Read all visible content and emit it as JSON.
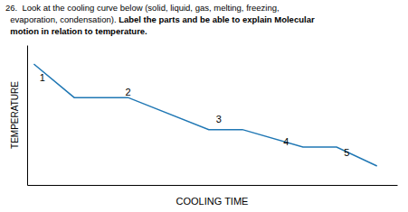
{
  "chart_data": {
    "type": "line",
    "title": [
      "26.  Look at the cooling curve below (solid, liquid, gas, melting, freezing,",
      "  evaporation, condensation). ",
      "Label the parts and be able to explain Molecular",
      "  motion in relation to temperature."
    ],
    "xlabel": "COOLING TIME",
    "ylabel": "TEMPERATURE",
    "x": [
      0.0,
      1.2,
      2.8,
      5.2,
      6.2,
      8.0,
      9.0,
      10.2
    ],
    "values": [
      9.5,
      7.2,
      7.2,
      5.0,
      5.0,
      3.8,
      3.8,
      2.5
    ],
    "annotations": [
      {
        "text": "1",
        "x": 0.25,
        "y": 8.6
      },
      {
        "text": "2",
        "x": 2.8,
        "y": 7.55
      },
      {
        "text": "3",
        "x": 5.5,
        "y": 5.7
      },
      {
        "text": "4",
        "x": 7.5,
        "y": 4.15
      },
      {
        "text": "5",
        "x": 9.3,
        "y": 3.45
      }
    ],
    "xlim": [
      -0.2,
      10.8
    ],
    "ylim": [
      1.2,
      10.8
    ],
    "xticks": [],
    "yticks": [],
    "tick_labels": false
  }
}
